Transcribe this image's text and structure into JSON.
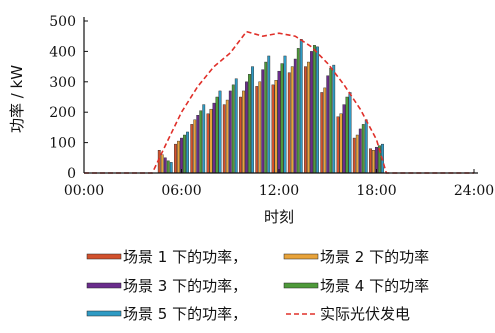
{
  "chart_data": {
    "type": "bar",
    "xlabel": "时刻",
    "ylabel": "功率 / kW",
    "xlim": [
      0,
      24
    ],
    "ylim": [
      0,
      500
    ],
    "x_ticks": [
      0,
      6,
      12,
      18,
      24
    ],
    "x_tick_labels": [
      "00:00",
      "06:00",
      "12:00",
      "18:00",
      "24:00"
    ],
    "y_ticks": [
      0,
      100,
      200,
      300,
      400,
      500
    ],
    "y_tick_labels": [
      "0",
      "100",
      "200",
      "300",
      "400",
      "500"
    ],
    "grid": false,
    "legend_position": "bottom",
    "hours": [
      5,
      6,
      7,
      8,
      9,
      10,
      11,
      12,
      13,
      14,
      15,
      16,
      17,
      18
    ],
    "series": [
      {
        "name": "场景 1 下的功率",
        "color": "#d2512d",
        "values": [
          75,
          95,
          160,
          195,
          225,
          250,
          285,
          290,
          330,
          350,
          265,
          185,
          115,
          80
        ]
      },
      {
        "name": "场景 2 下的功率",
        "color": "#e8a33a",
        "values": [
          60,
          105,
          175,
          210,
          240,
          270,
          300,
          305,
          350,
          365,
          280,
          195,
          125,
          75
        ]
      },
      {
        "name": "场景 3 下的功率",
        "color": "#6a2c8c",
        "values": [
          50,
          115,
          190,
          230,
          270,
          300,
          340,
          335,
          375,
          400,
          320,
          225,
          145,
          85
        ]
      },
      {
        "name": "场景 4 下的功率",
        "color": "#4e9a3a",
        "values": [
          40,
          125,
          205,
          250,
          290,
          325,
          365,
          360,
          410,
          420,
          345,
          250,
          160,
          90
        ]
      },
      {
        "name": "场景 5 下的功率",
        "color": "#2f9bc4",
        "values": [
          35,
          135,
          225,
          270,
          310,
          350,
          385,
          385,
          440,
          415,
          355,
          265,
          175,
          95
        ]
      }
    ],
    "actual": {
      "name": "实际光伏发电",
      "color": "#e0302a",
      "x": [
        0,
        4.2,
        5,
        6,
        7,
        8,
        9,
        10,
        11,
        12,
        13,
        14,
        15,
        16,
        17,
        18,
        18.6,
        24
      ],
      "y": [
        0,
        0,
        90,
        200,
        285,
        350,
        395,
        465,
        450,
        460,
        450,
        415,
        360,
        290,
        210,
        110,
        0,
        0
      ]
    }
  }
}
